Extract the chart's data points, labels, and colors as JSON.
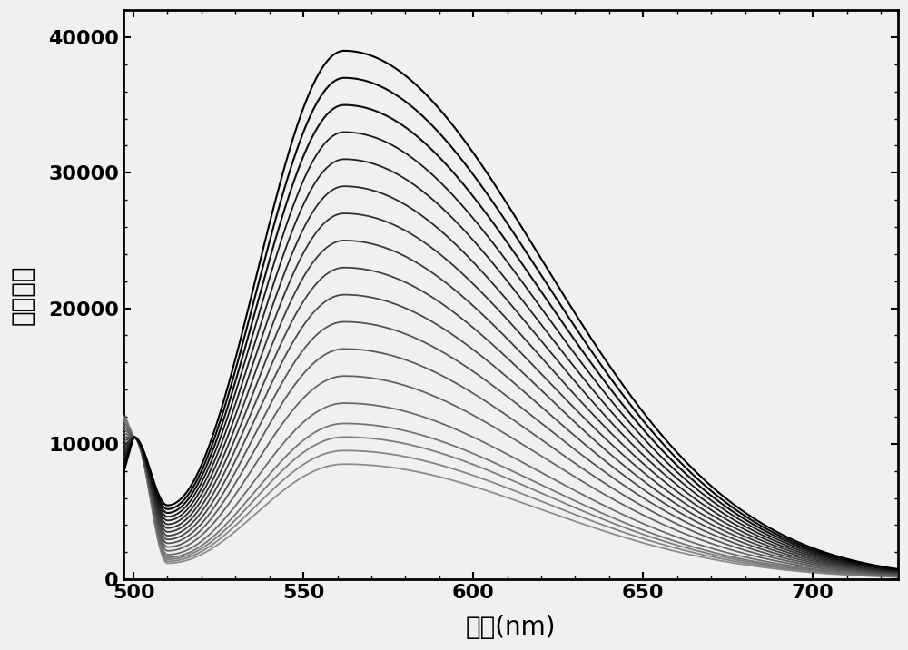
{
  "xlabel": "波长(nm)",
  "ylabel": "荧光强度",
  "xlim": [
    497,
    725
  ],
  "ylim": [
    0,
    42000
  ],
  "xticks": [
    500,
    550,
    600,
    650,
    700
  ],
  "yticks": [
    0,
    10000,
    20000,
    30000,
    40000
  ],
  "num_curves": 18,
  "peak_wavelength": 562,
  "peak_values": [
    39000,
    37000,
    35000,
    33000,
    31000,
    29000,
    27000,
    25000,
    23000,
    21000,
    19000,
    17000,
    15000,
    13000,
    11500,
    10500,
    9500,
    8500
  ],
  "start_wavelength": 497,
  "end_wavelength": 725,
  "background_color": "#f0f0f0",
  "fig_width": 10.0,
  "fig_height": 7.16,
  "dpi": 100,
  "xlabel_fontsize": 20,
  "ylabel_fontsize": 20,
  "tick_fontsize": 16
}
